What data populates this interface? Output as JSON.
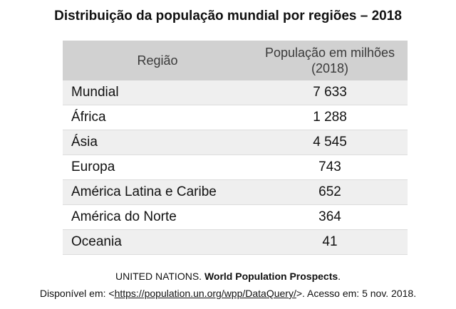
{
  "title": "Distribuição da população mundial por regiões – 2018",
  "table": {
    "headers": [
      "Região",
      "População em milhões (2018)"
    ],
    "rows": [
      {
        "region": "Mundial",
        "value": "7 633"
      },
      {
        "region": "África",
        "value": "1 288"
      },
      {
        "region": "Ásia",
        "value": "4 545"
      },
      {
        "region": "Europa",
        "value": "743"
      },
      {
        "region": "América Latina e Caribe",
        "value": "652"
      },
      {
        "region": "América do Norte",
        "value": "364"
      },
      {
        "region": "Oceania",
        "value": "41"
      }
    ]
  },
  "source": {
    "org": "UNITED NATIONS.",
    "work": "World Population Prospects",
    "period": ".",
    "available_prefix": "Disponível em: <",
    "url": "https://population.un.org/wpp/DataQuery/",
    "available_suffix": ">. Acesso em: 5 nov. 2018."
  }
}
